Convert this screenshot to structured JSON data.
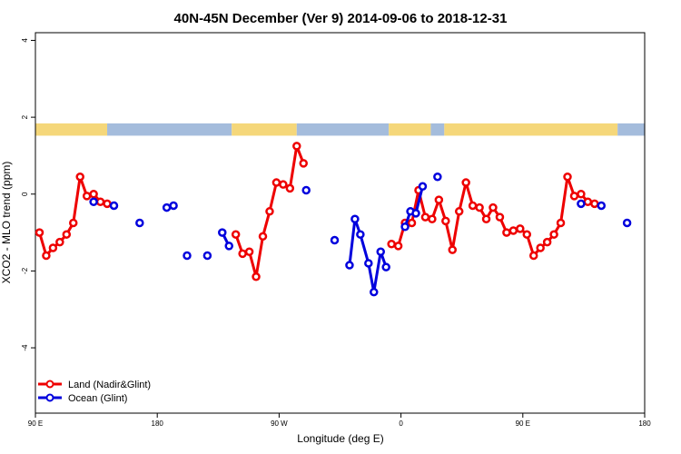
{
  "chart_data": {
    "type": "line",
    "title": "40N-45N December (Ver 9)   2014-09-06 to 2018-12-31",
    "xlabel": "Longitude (deg E)",
    "ylabel": "XCO2 - MLO trend (ppm)",
    "xlim": [
      90,
      540
    ],
    "ylim": [
      -5.7,
      4.2
    ],
    "x_ticks": [
      {
        "value": 90,
        "label": "90 E"
      },
      {
        "value": 180,
        "label": "180"
      },
      {
        "value": 270,
        "label": "90 W"
      },
      {
        "value": 360,
        "label": "0"
      },
      {
        "value": 450,
        "label": "90 E"
      },
      {
        "value": 540,
        "label": "180"
      }
    ],
    "y_ticks": [
      -4,
      -2,
      0,
      2,
      4
    ],
    "grid": false,
    "legend_position": "bottom-left",
    "land_ocean_band": {
      "land_color": "#f5d77a",
      "ocean_color": "#a4bcdc",
      "segments": [
        {
          "from": 90,
          "to": 143,
          "type": "land"
        },
        {
          "from": 143,
          "to": 235,
          "type": "ocean"
        },
        {
          "from": 235,
          "to": 283,
          "type": "land"
        },
        {
          "from": 283,
          "to": 351,
          "type": "ocean"
        },
        {
          "from": 351,
          "to": 382,
          "type": "land"
        },
        {
          "from": 382,
          "to": 392,
          "type": "ocean"
        },
        {
          "from": 392,
          "to": 520,
          "type": "land"
        },
        {
          "from": 520,
          "to": 540,
          "type": "ocean"
        }
      ]
    },
    "series": [
      {
        "name": "Land (Nadir&Glint)",
        "color": "#ee0000",
        "segments": [
          [
            [
              93,
              -1.0
            ],
            [
              98,
              -1.6
            ],
            [
              103,
              -1.4
            ],
            [
              108,
              -1.25
            ],
            [
              113,
              -1.05
            ],
            [
              118,
              -0.75
            ],
            [
              123,
              0.45
            ],
            [
              128,
              -0.05
            ],
            [
              133,
              0.0
            ],
            [
              138,
              -0.2
            ],
            [
              143,
              -0.25
            ]
          ],
          [
            [
              238,
              -1.05
            ],
            [
              243,
              -1.55
            ],
            [
              248,
              -1.5
            ],
            [
              253,
              -2.15
            ],
            [
              258,
              -1.1
            ],
            [
              263,
              -0.45
            ],
            [
              268,
              0.3
            ],
            [
              273,
              0.25
            ],
            [
              278,
              0.15
            ],
            [
              283,
              1.25
            ],
            [
              288,
              0.8
            ]
          ],
          [
            [
              353,
              -1.3
            ],
            [
              358,
              -1.35
            ],
            [
              363,
              -0.75
            ],
            [
              368,
              -0.75
            ],
            [
              373,
              0.1
            ],
            [
              378,
              -0.6
            ],
            [
              383,
              -0.65
            ],
            [
              388,
              -0.15
            ],
            [
              393,
              -0.7
            ],
            [
              398,
              -1.45
            ],
            [
              403,
              -0.45
            ],
            [
              408,
              0.3
            ],
            [
              413,
              -0.3
            ],
            [
              418,
              -0.35
            ],
            [
              423,
              -0.65
            ],
            [
              428,
              -0.35
            ],
            [
              433,
              -0.6
            ],
            [
              438,
              -1.0
            ],
            [
              443,
              -0.95
            ],
            [
              448,
              -0.9
            ],
            [
              453,
              -1.05
            ],
            [
              458,
              -1.6
            ],
            [
              463,
              -1.4
            ],
            [
              468,
              -1.25
            ],
            [
              473,
              -1.05
            ],
            [
              478,
              -0.75
            ],
            [
              483,
              0.45
            ],
            [
              488,
              -0.05
            ],
            [
              493,
              0.0
            ],
            [
              498,
              -0.2
            ],
            [
              503,
              -0.25
            ]
          ]
        ]
      },
      {
        "name": "Ocean (Glint)",
        "color": "#0000dd",
        "segments": [
          [
            [
              133,
              -0.2
            ]
          ],
          [
            [
              148,
              -0.3
            ]
          ],
          [
            [
              167,
              -0.75
            ]
          ],
          [
            [
              187,
              -0.35
            ],
            [
              192,
              -0.3
            ]
          ],
          [
            [
              202,
              -1.6
            ]
          ],
          [
            [
              217,
              -1.6
            ]
          ],
          [
            [
              228,
              -1.0
            ],
            [
              233,
              -1.35
            ]
          ],
          [
            [
              290,
              0.1
            ]
          ],
          [
            [
              311,
              -1.2
            ]
          ],
          [
            [
              322,
              -1.85
            ],
            [
              326,
              -0.65
            ],
            [
              330,
              -1.05
            ],
            [
              336,
              -1.8
            ],
            [
              340,
              -2.55
            ],
            [
              345,
              -1.5
            ],
            [
              349,
              -1.9
            ]
          ],
          [
            [
              363,
              -0.85
            ],
            [
              367,
              -0.45
            ],
            [
              371,
              -0.5
            ],
            [
              376,
              0.2
            ]
          ],
          [
            [
              387,
              0.45
            ]
          ],
          [
            [
              493,
              -0.25
            ]
          ],
          [
            [
              508,
              -0.3
            ]
          ],
          [
            [
              527,
              -0.75
            ]
          ]
        ]
      }
    ]
  }
}
